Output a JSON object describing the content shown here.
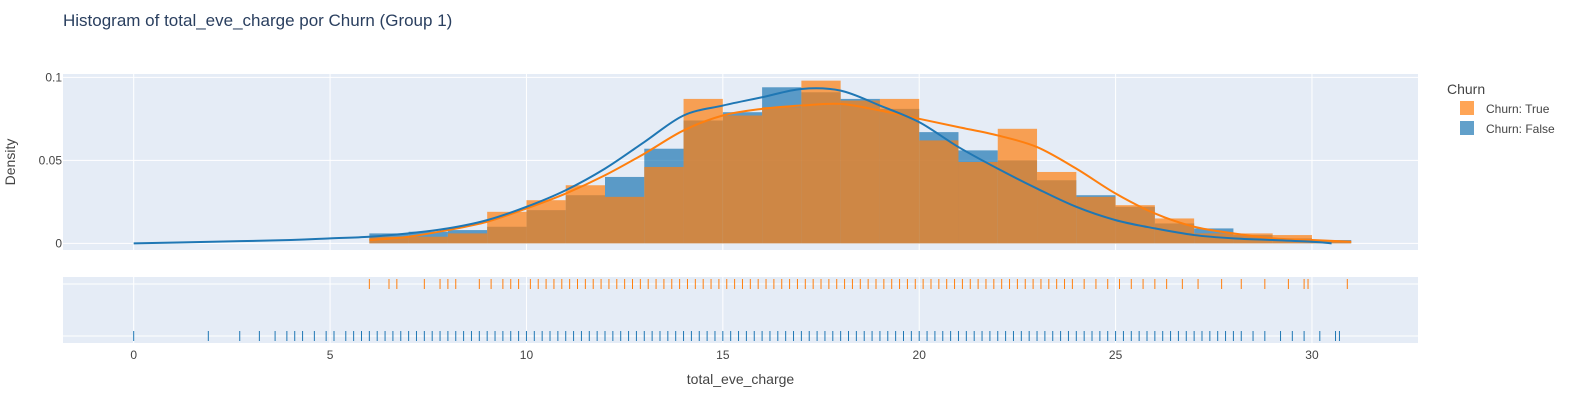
{
  "chart_data": {
    "type": "histogram",
    "title": "Histogram of total_eve_charge por Churn (Group 1)",
    "xlabel": "total_eve_charge",
    "ylabel": "Density",
    "xlim": [
      -1.8,
      32.7
    ],
    "ylim": [
      -0.004,
      0.102
    ],
    "x_ticks": [
      0,
      5,
      10,
      15,
      20,
      25,
      30
    ],
    "y_ticks": [
      0,
      0.05,
      0.1
    ],
    "y_tick_labels": [
      "0",
      "0.05",
      "0.1"
    ],
    "bin_edges": [
      6,
      7,
      8,
      9,
      10,
      11,
      12,
      13,
      14,
      15,
      16,
      17,
      18,
      19,
      20,
      21,
      22,
      23,
      24,
      25,
      26,
      27,
      28,
      29,
      30,
      31
    ],
    "series": [
      {
        "name": "Churn: True",
        "color": "#ff7f0e",
        "density": [
          0.004,
          0.004,
          0.006,
          0.019,
          0.026,
          0.035,
          0.028,
          0.046,
          0.087,
          0.077,
          0.082,
          0.098,
          0.086,
          0.087,
          0.062,
          0.049,
          0.069,
          0.043,
          0.028,
          0.023,
          0.015,
          0.006,
          0.006,
          0.005,
          0.001
        ],
        "kde_x": [
          6,
          7,
          8,
          9,
          10,
          11,
          12,
          13,
          14,
          15,
          16,
          17,
          18,
          19,
          20,
          21,
          22,
          23,
          24,
          25,
          26,
          27,
          28,
          29,
          30,
          31
        ],
        "kde_y": [
          0.002,
          0.004,
          0.008,
          0.013,
          0.021,
          0.03,
          0.041,
          0.054,
          0.068,
          0.077,
          0.081,
          0.083,
          0.084,
          0.08,
          0.075,
          0.07,
          0.065,
          0.058,
          0.045,
          0.03,
          0.018,
          0.01,
          0.006,
          0.003,
          0.002,
          0.001
        ],
        "rug": [
          6.0,
          6.5,
          6.7,
          7.4,
          7.8,
          8.0,
          8.2,
          8.8,
          9.1,
          9.4,
          9.6,
          9.8,
          10.1,
          10.3,
          10.5,
          10.7,
          10.9,
          11.1,
          11.3,
          11.5,
          11.7,
          11.9,
          12.1,
          12.3,
          12.5,
          12.7,
          12.9,
          13.1,
          13.3,
          13.5,
          13.7,
          13.9,
          14.1,
          14.3,
          14.5,
          14.7,
          14.9,
          15.1,
          15.3,
          15.5,
          15.7,
          15.9,
          16.1,
          16.3,
          16.5,
          16.7,
          16.9,
          17.1,
          17.3,
          17.5,
          17.7,
          17.9,
          18.1,
          18.3,
          18.5,
          18.7,
          18.9,
          19.1,
          19.3,
          19.5,
          19.7,
          19.9,
          20.1,
          20.3,
          20.5,
          20.7,
          20.9,
          21.1,
          21.3,
          21.5,
          21.7,
          21.9,
          22.1,
          22.3,
          22.5,
          22.7,
          22.9,
          23.1,
          23.3,
          23.5,
          23.7,
          23.9,
          24.2,
          24.5,
          24.8,
          25.1,
          25.4,
          25.7,
          26.0,
          26.3,
          26.7,
          27.1,
          27.7,
          28.2,
          28.8,
          29.4,
          29.8,
          29.9,
          30.9
        ]
      },
      {
        "name": "Churn: False",
        "color": "#1f77b4",
        "density": [
          0.006,
          0.007,
          0.008,
          0.01,
          0.02,
          0.029,
          0.04,
          0.057,
          0.074,
          0.079,
          0.094,
          0.091,
          0.087,
          0.081,
          0.067,
          0.056,
          0.05,
          0.038,
          0.029,
          0.022,
          0.012,
          0.009,
          0.005,
          0.003,
          0.002
        ],
        "kde_x": [
          0,
          2,
          4,
          5,
          6,
          7,
          8,
          9,
          10,
          11,
          12,
          13,
          14,
          15,
          16,
          17,
          18,
          19,
          20,
          21,
          22,
          23,
          24,
          25,
          26,
          27,
          28,
          29,
          30,
          30.5
        ],
        "kde_y": [
          0.0,
          0.001,
          0.002,
          0.003,
          0.004,
          0.006,
          0.009,
          0.014,
          0.022,
          0.032,
          0.045,
          0.061,
          0.077,
          0.083,
          0.088,
          0.093,
          0.092,
          0.083,
          0.073,
          0.058,
          0.045,
          0.033,
          0.022,
          0.014,
          0.009,
          0.005,
          0.003,
          0.002,
          0.001,
          0.0
        ],
        "rug": [
          0.0,
          1.9,
          2.7,
          3.2,
          3.6,
          3.9,
          4.1,
          4.3,
          4.6,
          4.9,
          5.1,
          5.4,
          5.6,
          5.8,
          6.0,
          6.2,
          6.4,
          6.6,
          6.8,
          7.0,
          7.2,
          7.4,
          7.6,
          7.8,
          8.0,
          8.2,
          8.4,
          8.6,
          8.8,
          9.0,
          9.2,
          9.4,
          9.6,
          9.8,
          10.0,
          10.2,
          10.4,
          10.6,
          10.8,
          11.0,
          11.2,
          11.4,
          11.6,
          11.8,
          12.0,
          12.2,
          12.4,
          12.6,
          12.8,
          13.0,
          13.2,
          13.4,
          13.6,
          13.8,
          14.0,
          14.2,
          14.4,
          14.6,
          14.8,
          15.0,
          15.2,
          15.4,
          15.6,
          15.8,
          16.0,
          16.2,
          16.4,
          16.6,
          16.8,
          17.0,
          17.2,
          17.4,
          17.6,
          17.8,
          18.0,
          18.2,
          18.4,
          18.6,
          18.8,
          19.0,
          19.2,
          19.4,
          19.6,
          19.8,
          20.0,
          20.2,
          20.4,
          20.6,
          20.8,
          21.0,
          21.2,
          21.4,
          21.6,
          21.8,
          22.0,
          22.2,
          22.4,
          22.6,
          22.8,
          23.0,
          23.2,
          23.4,
          23.6,
          23.8,
          24.0,
          24.2,
          24.4,
          24.6,
          24.8,
          25.0,
          25.2,
          25.4,
          25.6,
          25.8,
          26.0,
          26.2,
          26.4,
          26.6,
          26.8,
          27.0,
          27.2,
          27.4,
          27.6,
          27.8,
          28.0,
          28.2,
          28.5,
          28.8,
          29.2,
          29.5,
          29.8,
          30.2,
          30.6,
          30.7
        ]
      }
    ],
    "legend": {
      "title": "Churn",
      "placement": "top-right",
      "items": [
        "Churn: True",
        "Churn: False"
      ]
    },
    "grid": true,
    "colors": {
      "plot_background": "#e5ecf6",
      "grid": "#ffffff",
      "text": "#444444",
      "title": "#2a3f5f"
    }
  }
}
